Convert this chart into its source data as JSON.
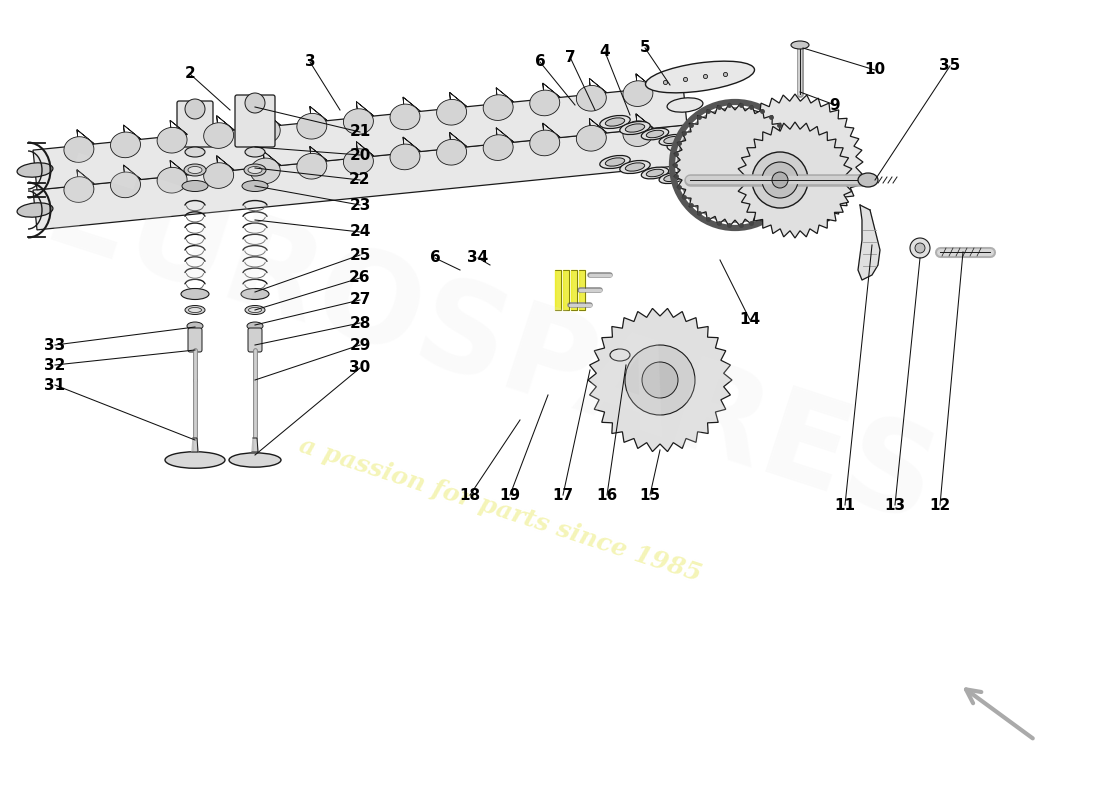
{
  "bg": "#ffffff",
  "line_color": "#1a1a1a",
  "fill_light": "#f0f0f0",
  "fill_mid": "#d8d8d8",
  "fill_dark": "#b8b8b8",
  "watermark_text": "a passion for parts since 1985",
  "watermark_color": "#eeee88",
  "watermark_alpha": 0.6,
  "label_fs": 11,
  "label_fw": "bold",
  "leader_color": "#111111",
  "leader_lw": 0.8
}
